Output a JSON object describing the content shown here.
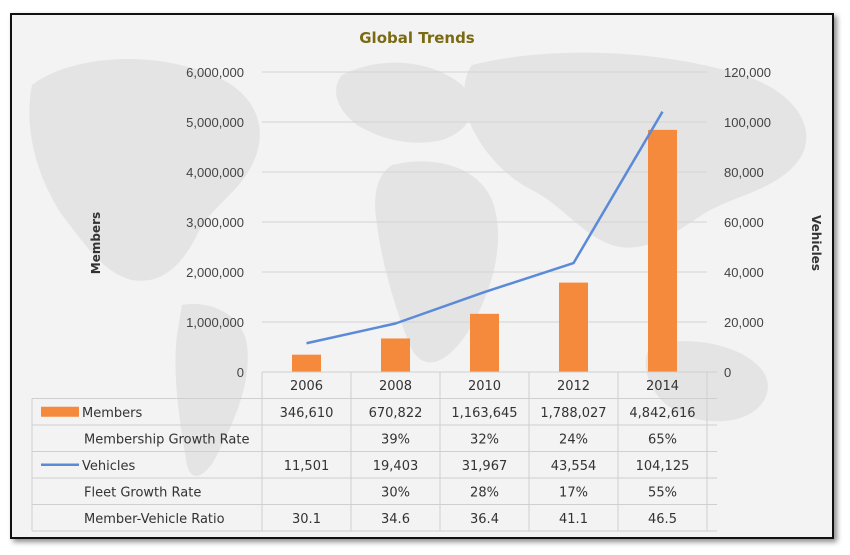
{
  "chart_data": {
    "type": "bar",
    "title": "Global Trends",
    "categories": [
      "2006",
      "2008",
      "2010",
      "2012",
      "2014"
    ],
    "ylabel": "Members",
    "y2label": "Vehicles",
    "ylim": [
      0,
      6000000
    ],
    "y2lim": [
      0,
      120000
    ],
    "yticks": [
      "0",
      "1,000,000",
      "2,000,000",
      "3,000,000",
      "4,000,000",
      "5,000,000",
      "6,000,000"
    ],
    "y2ticks": [
      "0",
      "20,000",
      "40,000",
      "60,000",
      "80,000",
      "100,000",
      "120,000"
    ],
    "grid": true,
    "series": [
      {
        "name": "Members",
        "type": "bar",
        "axis": "left",
        "color": "#f58a3d",
        "values": [
          346610,
          670822,
          1163645,
          1788027,
          4842616
        ]
      },
      {
        "name": "Vehicles",
        "type": "line",
        "axis": "right",
        "color": "#5b8ad8",
        "values": [
          11501,
          19403,
          31967,
          43554,
          104125
        ]
      }
    ],
    "table": {
      "rows": [
        {
          "label": "Members",
          "legend": "bar",
          "cells": [
            "346,610",
            "670,822",
            "1,163,645",
            "1,788,027",
            "4,842,616"
          ]
        },
        {
          "label": "Membership Growth Rate",
          "legend": "",
          "cells": [
            "",
            "39%",
            "32%",
            "24%",
            "65%"
          ]
        },
        {
          "label": "Vehicles",
          "legend": "line",
          "cells": [
            "11,501",
            "19,403",
            "31,967",
            "43,554",
            "104,125"
          ]
        },
        {
          "label": "Fleet Growth Rate",
          "legend": "",
          "cells": [
            "",
            "30%",
            "28%",
            "17%",
            "55%"
          ]
        },
        {
          "label": "Member-Vehicle Ratio",
          "legend": "",
          "cells": [
            "30.1",
            "34.6",
            "36.4",
            "41.1",
            "46.5"
          ]
        }
      ]
    }
  }
}
